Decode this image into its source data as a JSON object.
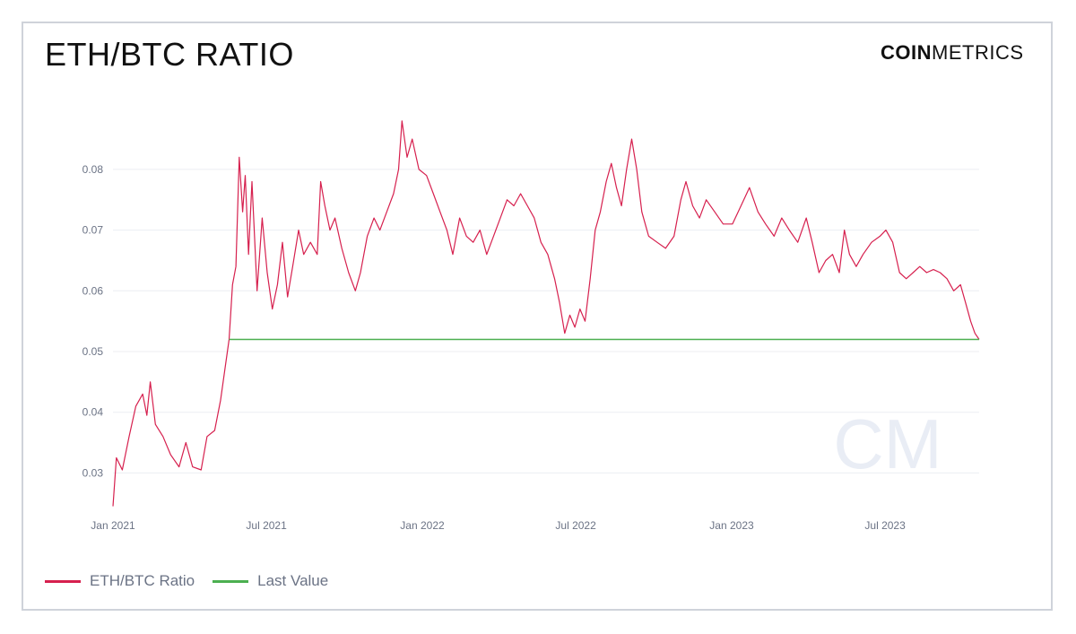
{
  "header": {
    "title": "ETH/BTC RATIO",
    "logo_bold": "COIN",
    "logo_light": "METRICS",
    "watermark": "CM"
  },
  "colors": {
    "series": "#d6204e",
    "last_value": "#4caf50",
    "grid": "#eceef2",
    "tick_text": "#6b7385"
  },
  "chart_data": {
    "type": "line",
    "title": "ETH/BTC RATIO",
    "xlabel": "",
    "ylabel": "",
    "ylim": [
      0.024,
      0.089
    ],
    "x_ticks": [
      "Jan 2021",
      "Jul 2021",
      "Jan 2022",
      "Jul 2022",
      "Jan 2023",
      "Jul 2023"
    ],
    "y_ticks": [
      "0.03",
      "0.04",
      "0.05",
      "0.06",
      "0.07",
      "0.08"
    ],
    "xlim": [
      "2021-01-01",
      "2023-10-20"
    ],
    "grid": true,
    "legend_placement": "bottom-left",
    "series": [
      {
        "name": "ETH/BTC Ratio",
        "color": "#d6204e",
        "points": [
          [
            "2021-01-01",
            0.0245
          ],
          [
            "2021-01-05",
            0.0325
          ],
          [
            "2021-01-12",
            0.0305
          ],
          [
            "2021-01-20",
            0.036
          ],
          [
            "2021-01-28",
            0.041
          ],
          [
            "2021-02-05",
            0.043
          ],
          [
            "2021-02-10",
            0.0395
          ],
          [
            "2021-02-14",
            0.045
          ],
          [
            "2021-02-20",
            0.038
          ],
          [
            "2021-03-01",
            0.036
          ],
          [
            "2021-03-10",
            0.033
          ],
          [
            "2021-03-20",
            0.031
          ],
          [
            "2021-03-28",
            0.035
          ],
          [
            "2021-04-05",
            0.031
          ],
          [
            "2021-04-15",
            0.0305
          ],
          [
            "2021-04-22",
            0.036
          ],
          [
            "2021-05-01",
            0.037
          ],
          [
            "2021-05-08",
            0.042
          ],
          [
            "2021-05-14",
            0.048
          ],
          [
            "2021-05-18",
            0.052
          ],
          [
            "2021-05-22",
            0.061
          ],
          [
            "2021-05-26",
            0.064
          ],
          [
            "2021-05-30",
            0.082
          ],
          [
            "2021-06-03",
            0.073
          ],
          [
            "2021-06-06",
            0.079
          ],
          [
            "2021-06-10",
            0.066
          ],
          [
            "2021-06-14",
            0.078
          ],
          [
            "2021-06-20",
            0.06
          ],
          [
            "2021-06-26",
            0.072
          ],
          [
            "2021-07-02",
            0.063
          ],
          [
            "2021-07-08",
            0.057
          ],
          [
            "2021-07-14",
            0.061
          ],
          [
            "2021-07-20",
            0.068
          ],
          [
            "2021-07-26",
            0.059
          ],
          [
            "2021-08-01",
            0.064
          ],
          [
            "2021-08-08",
            0.07
          ],
          [
            "2021-08-14",
            0.066
          ],
          [
            "2021-08-22",
            0.068
          ],
          [
            "2021-08-30",
            0.066
          ],
          [
            "2021-09-03",
            0.078
          ],
          [
            "2021-09-08",
            0.074
          ],
          [
            "2021-09-14",
            0.07
          ],
          [
            "2021-09-20",
            0.072
          ],
          [
            "2021-09-28",
            0.067
          ],
          [
            "2021-10-06",
            0.063
          ],
          [
            "2021-10-14",
            0.06
          ],
          [
            "2021-10-20",
            0.063
          ],
          [
            "2021-10-28",
            0.069
          ],
          [
            "2021-11-05",
            0.072
          ],
          [
            "2021-11-12",
            0.07
          ],
          [
            "2021-11-20",
            0.073
          ],
          [
            "2021-11-28",
            0.076
          ],
          [
            "2021-12-04",
            0.08
          ],
          [
            "2021-12-08",
            0.088
          ],
          [
            "2021-12-14",
            0.082
          ],
          [
            "2021-12-20",
            0.085
          ],
          [
            "2021-12-28",
            0.08
          ],
          [
            "2022-01-06",
            0.079
          ],
          [
            "2022-01-14",
            0.076
          ],
          [
            "2022-01-22",
            0.073
          ],
          [
            "2022-01-30",
            0.07
          ],
          [
            "2022-02-06",
            0.066
          ],
          [
            "2022-02-14",
            0.072
          ],
          [
            "2022-02-22",
            0.069
          ],
          [
            "2022-03-02",
            0.068
          ],
          [
            "2022-03-10",
            0.07
          ],
          [
            "2022-03-18",
            0.066
          ],
          [
            "2022-03-26",
            0.069
          ],
          [
            "2022-04-03",
            0.072
          ],
          [
            "2022-04-11",
            0.075
          ],
          [
            "2022-04-19",
            0.074
          ],
          [
            "2022-04-27",
            0.076
          ],
          [
            "2022-05-05",
            0.074
          ],
          [
            "2022-05-13",
            0.072
          ],
          [
            "2022-05-21",
            0.068
          ],
          [
            "2022-05-29",
            0.066
          ],
          [
            "2022-06-06",
            0.062
          ],
          [
            "2022-06-12",
            0.058
          ],
          [
            "2022-06-18",
            0.053
          ],
          [
            "2022-06-24",
            0.056
          ],
          [
            "2022-06-30",
            0.054
          ],
          [
            "2022-07-06",
            0.057
          ],
          [
            "2022-07-12",
            0.055
          ],
          [
            "2022-07-18",
            0.062
          ],
          [
            "2022-07-24",
            0.07
          ],
          [
            "2022-07-30",
            0.073
          ],
          [
            "2022-08-06",
            0.078
          ],
          [
            "2022-08-12",
            0.081
          ],
          [
            "2022-08-18",
            0.077
          ],
          [
            "2022-08-24",
            0.074
          ],
          [
            "2022-08-30",
            0.08
          ],
          [
            "2022-09-05",
            0.085
          ],
          [
            "2022-09-11",
            0.08
          ],
          [
            "2022-09-17",
            0.073
          ],
          [
            "2022-09-25",
            0.069
          ],
          [
            "2022-10-05",
            0.068
          ],
          [
            "2022-10-15",
            0.067
          ],
          [
            "2022-10-25",
            0.069
          ],
          [
            "2022-11-02",
            0.075
          ],
          [
            "2022-11-08",
            0.078
          ],
          [
            "2022-11-16",
            0.074
          ],
          [
            "2022-11-24",
            0.072
          ],
          [
            "2022-12-02",
            0.075
          ],
          [
            "2022-12-12",
            0.073
          ],
          [
            "2022-12-22",
            0.071
          ],
          [
            "2023-01-02",
            0.071
          ],
          [
            "2023-01-12",
            0.074
          ],
          [
            "2023-01-22",
            0.077
          ],
          [
            "2023-02-01",
            0.073
          ],
          [
            "2023-02-10",
            0.071
          ],
          [
            "2023-02-20",
            0.069
          ],
          [
            "2023-03-01",
            0.072
          ],
          [
            "2023-03-10",
            0.07
          ],
          [
            "2023-03-20",
            0.068
          ],
          [
            "2023-03-30",
            0.072
          ],
          [
            "2023-04-06",
            0.068
          ],
          [
            "2023-04-14",
            0.063
          ],
          [
            "2023-04-22",
            0.065
          ],
          [
            "2023-04-30",
            0.066
          ],
          [
            "2023-05-08",
            0.063
          ],
          [
            "2023-05-14",
            0.07
          ],
          [
            "2023-05-20",
            0.066
          ],
          [
            "2023-05-28",
            0.064
          ],
          [
            "2023-06-05",
            0.066
          ],
          [
            "2023-06-15",
            0.068
          ],
          [
            "2023-06-25",
            0.069
          ],
          [
            "2023-07-02",
            0.07
          ],
          [
            "2023-07-10",
            0.068
          ],
          [
            "2023-07-18",
            0.063
          ],
          [
            "2023-07-26",
            0.062
          ],
          [
            "2023-08-03",
            0.063
          ],
          [
            "2023-08-11",
            0.064
          ],
          [
            "2023-08-19",
            0.063
          ],
          [
            "2023-08-27",
            0.0635
          ],
          [
            "2023-09-04",
            0.063
          ],
          [
            "2023-09-12",
            0.062
          ],
          [
            "2023-09-20",
            0.06
          ],
          [
            "2023-09-28",
            0.061
          ],
          [
            "2023-10-04",
            0.058
          ],
          [
            "2023-10-10",
            0.055
          ],
          [
            "2023-10-15",
            0.053
          ],
          [
            "2023-10-20",
            0.052
          ]
        ]
      },
      {
        "name": "Last Value",
        "color": "#4caf50",
        "points": [
          [
            "2021-05-18",
            0.052
          ],
          [
            "2023-10-20",
            0.052
          ]
        ]
      }
    ]
  },
  "legend": {
    "items": [
      {
        "label": "ETH/BTC Ratio",
        "color": "#d6204e"
      },
      {
        "label": "Last Value",
        "color": "#4caf50"
      }
    ]
  }
}
